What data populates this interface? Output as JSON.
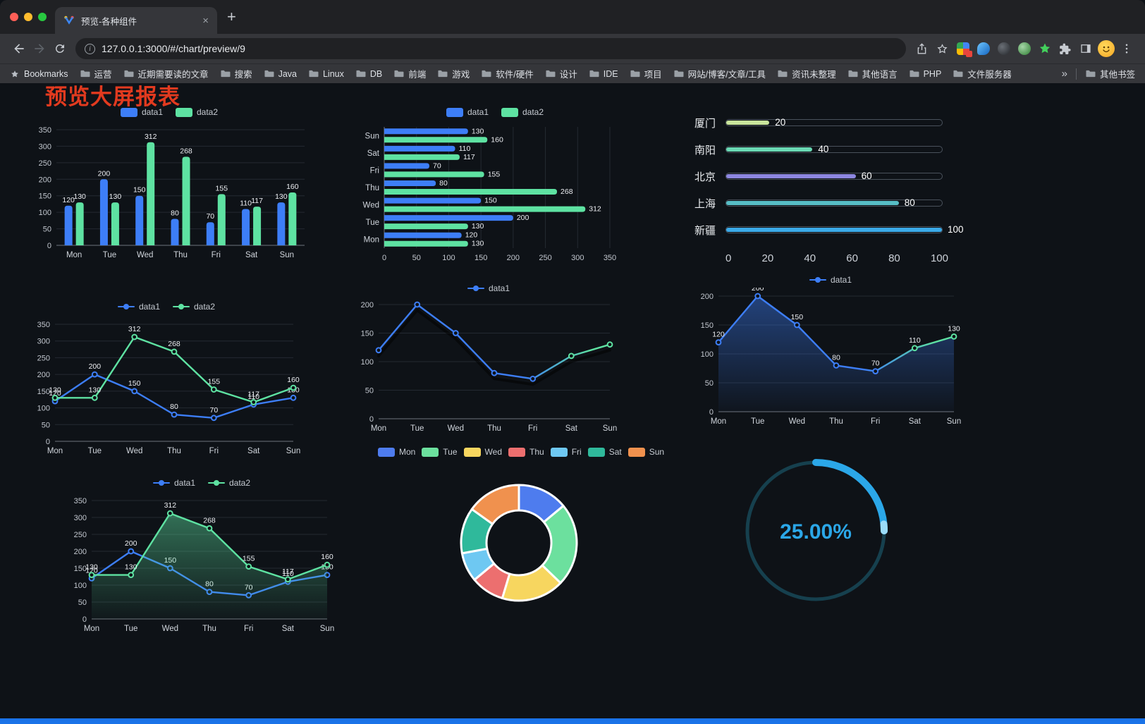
{
  "browser": {
    "tab_title": "预览-各种组件",
    "url": "127.0.0.1:3000/#/chart/preview/9",
    "new_tab": "+",
    "close_tab": "×",
    "bookmarks_bar": {
      "first_item": "Bookmarks",
      "folders": [
        "运营",
        "近期需要读的文章",
        "搜索",
        "Java",
        "Linux",
        "DB",
        "前端",
        "游戏",
        "软件/硬件",
        "设计",
        "IDE",
        "项目",
        "网站/博客/文章/工具",
        "资讯未整理",
        "其他语言",
        "PHP",
        "文件服务器"
      ],
      "overflow": "»",
      "other_bookmarks": "其他书签"
    }
  },
  "page": {
    "title": "预览大屏报表"
  },
  "colors": {
    "data1_blue": "#3D7EF7",
    "data2_green": "#5EE2A2",
    "title_red": "#e23a1f",
    "gauge_blue": "#2BA7E8",
    "bottom_accent": "#1a73e8"
  },
  "chart_data": [
    {
      "id": "grouped-bar",
      "type": "bar",
      "categories": [
        "Mon",
        "Tue",
        "Wed",
        "Thu",
        "Fri",
        "Sat",
        "Sun"
      ],
      "series": [
        {
          "name": "data1",
          "color": "#3D7EF7",
          "values": [
            120,
            200,
            150,
            80,
            70,
            110,
            130
          ]
        },
        {
          "name": "data2",
          "color": "#5EE2A2",
          "values": [
            130,
            130,
            312,
            268,
            155,
            117,
            160
          ]
        }
      ],
      "ylim": [
        0,
        350
      ],
      "ytick_step": 50,
      "value_labels": true,
      "legend_position": "top",
      "grid": true
    },
    {
      "id": "grouped-horizontal-bar",
      "type": "hbar",
      "categories": [
        "Mon",
        "Tue",
        "Wed",
        "Thu",
        "Fri",
        "Sat",
        "Sun"
      ],
      "series": [
        {
          "name": "data1",
          "color": "#3D7EF7",
          "values": [
            120,
            200,
            150,
            80,
            70,
            110,
            130
          ]
        },
        {
          "name": "data2",
          "color": "#5EE2A2",
          "values": [
            130,
            130,
            312,
            268,
            155,
            117,
            160
          ]
        }
      ],
      "xlim": [
        0,
        350
      ],
      "xtick_step": 50,
      "value_labels": true,
      "legend_position": "top",
      "grid": true
    },
    {
      "id": "city-progress",
      "type": "progress",
      "items": [
        {
          "label": "厦门",
          "value": 20,
          "color": "#C9E59C"
        },
        {
          "label": "南阳",
          "value": 40,
          "color": "#69D8B3"
        },
        {
          "label": "北京",
          "value": 60,
          "color": "#8D87E0"
        },
        {
          "label": "上海",
          "value": 80,
          "color": "#57BEC6"
        },
        {
          "label": "新疆",
          "value": 100,
          "color": "#3BAAE8"
        }
      ],
      "xticks": [
        0,
        20,
        40,
        60,
        80,
        100
      ],
      "xlim": [
        0,
        100
      ]
    },
    {
      "id": "two-series-line",
      "type": "line",
      "categories": [
        "Mon",
        "Tue",
        "Wed",
        "Thu",
        "Fri",
        "Sat",
        "Sun"
      ],
      "series": [
        {
          "name": "data1",
          "color": "#3D7EF7",
          "values": [
            120,
            200,
            150,
            80,
            70,
            110,
            130
          ]
        },
        {
          "name": "data2",
          "color": "#5EE2A2",
          "values": [
            130,
            130,
            312,
            268,
            155,
            117,
            160
          ]
        }
      ],
      "ylim": [
        0,
        350
      ],
      "ytick_step": 50,
      "value_labels": true,
      "legend_position": "top",
      "grid": true
    },
    {
      "id": "gradient-line",
      "type": "line",
      "categories": [
        "Mon",
        "Tue",
        "Wed",
        "Thu",
        "Fri",
        "Sat",
        "Sun"
      ],
      "series": [
        {
          "name": "data1",
          "gradient": [
            "#3D7EF7",
            "#5EE2A2"
          ],
          "values": [
            120,
            200,
            150,
            80,
            70,
            110,
            130
          ]
        }
      ],
      "ylim": [
        0,
        200
      ],
      "ytick_step": 50,
      "value_labels": false,
      "shadow": true,
      "legend_position": "top",
      "grid": true
    },
    {
      "id": "gradient-area-line",
      "type": "line",
      "categories": [
        "Mon",
        "Tue",
        "Wed",
        "Thu",
        "Fri",
        "Sat",
        "Sun"
      ],
      "series": [
        {
          "name": "data1",
          "gradient": [
            "#3D7EF7",
            "#5EE2A2"
          ],
          "values": [
            120,
            200,
            150,
            80,
            70,
            110,
            130
          ],
          "area": true
        }
      ],
      "ylim": [
        0,
        200
      ],
      "ytick_step": 50,
      "value_labels": true,
      "legend_position": "top",
      "grid": true
    },
    {
      "id": "two-series-area-line",
      "type": "line",
      "categories": [
        "Mon",
        "Tue",
        "Wed",
        "Thu",
        "Fri",
        "Sat",
        "Sun"
      ],
      "series": [
        {
          "name": "data1",
          "color": "#3D7EF7",
          "values": [
            120,
            200,
            150,
            80,
            70,
            110,
            130
          ]
        },
        {
          "name": "data2",
          "color": "#5EE2A2",
          "values": [
            130,
            130,
            312,
            268,
            155,
            117,
            160
          ],
          "area": true
        }
      ],
      "ylim": [
        0,
        350
      ],
      "ytick_step": 50,
      "value_labels": true,
      "legend_position": "top",
      "grid": true
    },
    {
      "id": "week-donut",
      "type": "pie",
      "donut": true,
      "categories": [
        "Mon",
        "Tue",
        "Wed",
        "Thu",
        "Fri",
        "Sat",
        "Sun"
      ],
      "values": [
        120,
        200,
        150,
        80,
        70,
        110,
        130
      ],
      "colors": [
        "#4E7CEE",
        "#6CE09E",
        "#F7D65F",
        "#EC6F6F",
        "#6EC8F2",
        "#2FB99B",
        "#F0914E"
      ],
      "legend_position": "top"
    },
    {
      "id": "percent-gauge",
      "type": "gauge",
      "value": 25,
      "max": 100,
      "label": "25.00%",
      "color": "#2BA7E8",
      "tail_color": "#9BDCF9",
      "track_color": "#16404E"
    }
  ]
}
